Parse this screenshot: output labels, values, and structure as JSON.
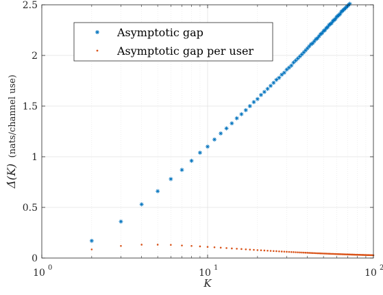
{
  "chart_data": {
    "type": "scatter",
    "xscale": "log",
    "xlim": [
      1,
      100
    ],
    "ylim": [
      0,
      2.5
    ],
    "grid": true,
    "legend_position": "top-left",
    "xlabel": "K",
    "ylabel": "Δ̇(K) (nats/channel use)",
    "ylabel_main": "Δ̇(K)",
    "ylabel_units": "(nats/channel use)",
    "xticks": [
      1,
      10,
      100
    ],
    "xtick_labels": [
      "10",
      "10",
      "10"
    ],
    "xtick_exponents": [
      "0",
      "1",
      "2"
    ],
    "yticks": [
      0,
      0.5,
      1,
      1.5,
      2,
      2.5
    ],
    "ytick_labels": [
      "0",
      "0.5",
      "1",
      "1.5",
      "2",
      "2.5"
    ],
    "series": [
      {
        "name": "Asymptotic gap",
        "marker": "asterisk",
        "color": "#0072BD",
        "x": [
          2,
          3,
          4,
          5,
          6,
          7,
          8,
          9,
          10,
          11,
          12,
          13,
          14,
          15,
          16,
          17,
          18,
          19,
          20,
          21,
          22,
          23,
          24,
          25,
          26,
          27,
          28,
          29,
          30,
          31,
          32,
          33,
          34,
          35,
          36,
          37,
          38,
          39,
          40,
          41,
          42,
          43,
          44,
          45,
          46,
          47,
          48,
          49,
          50,
          51,
          52,
          53,
          54,
          55,
          56,
          57,
          58,
          59,
          60,
          61,
          62,
          63,
          64,
          65,
          66,
          67,
          68,
          69,
          70,
          71,
          72,
          73
        ],
        "y": [
          0.17,
          0.36,
          0.53,
          0.66,
          0.78,
          0.87,
          0.96,
          1.04,
          1.1,
          1.17,
          1.23,
          1.28,
          1.33,
          1.38,
          1.42,
          1.46,
          1.5,
          1.54,
          1.57,
          1.61,
          1.64,
          1.67,
          1.7,
          1.73,
          1.76,
          1.78,
          1.81,
          1.83,
          1.86,
          1.88,
          1.9,
          1.93,
          1.95,
          1.97,
          1.99,
          2.01,
          2.03,
          2.05,
          2.07,
          2.09,
          2.11,
          2.12,
          2.14,
          2.16,
          2.17,
          2.19,
          2.21,
          2.22,
          2.24,
          2.25,
          2.27,
          2.28,
          2.3,
          2.31,
          2.32,
          2.34,
          2.35,
          2.36,
          2.38,
          2.39,
          2.4,
          2.41,
          2.43,
          2.44,
          2.45,
          2.46,
          2.47,
          2.48,
          2.49,
          2.5,
          2.51,
          2.52
        ]
      },
      {
        "name": "Asymptotic gap per user",
        "marker": "dot",
        "color": "#D95319",
        "x": [
          2,
          3,
          4,
          5,
          6,
          7,
          8,
          9,
          10,
          11,
          12,
          13,
          14,
          15,
          16,
          17,
          18,
          19,
          20,
          21,
          22,
          23,
          24,
          25,
          26,
          27,
          28,
          29,
          30,
          31,
          32,
          33,
          34,
          35,
          36,
          37,
          38,
          39,
          40,
          41,
          42,
          43,
          44,
          45,
          46,
          47,
          48,
          49,
          50,
          51,
          52,
          53,
          54,
          55,
          56,
          57,
          58,
          59,
          60,
          61,
          62,
          63,
          64,
          65,
          66,
          67,
          68,
          69,
          70,
          71,
          72,
          73,
          74,
          75,
          76,
          77,
          78,
          79,
          80,
          81,
          82,
          83,
          84,
          85,
          86,
          87,
          88,
          89,
          90,
          91,
          92,
          93,
          94,
          95,
          96,
          97,
          98,
          99,
          100
        ],
        "y": [
          0.085,
          0.12,
          0.132,
          0.132,
          0.13,
          0.124,
          0.12,
          0.115,
          0.11,
          0.106,
          0.1025,
          0.0985,
          0.095,
          0.092,
          0.089,
          0.086,
          0.0833,
          0.081,
          0.0785,
          0.0767,
          0.0745,
          0.0726,
          0.0708,
          0.0692,
          0.0677,
          0.0659,
          0.0646,
          0.0631,
          0.062,
          0.0606,
          0.0594,
          0.0585,
          0.0574,
          0.0563,
          0.0553,
          0.0543,
          0.0534,
          0.0526,
          0.0518,
          0.051,
          0.0502,
          0.0493,
          0.0486,
          0.048,
          0.0472,
          0.0466,
          0.046,
          0.0453,
          0.0448,
          0.0441,
          0.0437,
          0.043,
          0.0426,
          0.042,
          0.0414,
          0.041,
          0.0405,
          0.04,
          0.0397,
          0.0392,
          0.0387,
          0.0383,
          0.038,
          0.0375,
          0.0371,
          0.0367,
          0.0363,
          0.036,
          0.0356,
          0.0352,
          0.0349,
          0.0346,
          0.0342,
          0.0339,
          0.0336,
          0.0333,
          0.033,
          0.0327,
          0.0324,
          0.0321,
          0.0318,
          0.0316,
          0.0313,
          0.031,
          0.0308,
          0.0305,
          0.0303,
          0.03,
          0.0298,
          0.0296,
          0.0293,
          0.0291,
          0.0289,
          0.0287,
          0.0285,
          0.0283,
          0.0281,
          0.0279,
          0.0277
        ]
      }
    ]
  }
}
